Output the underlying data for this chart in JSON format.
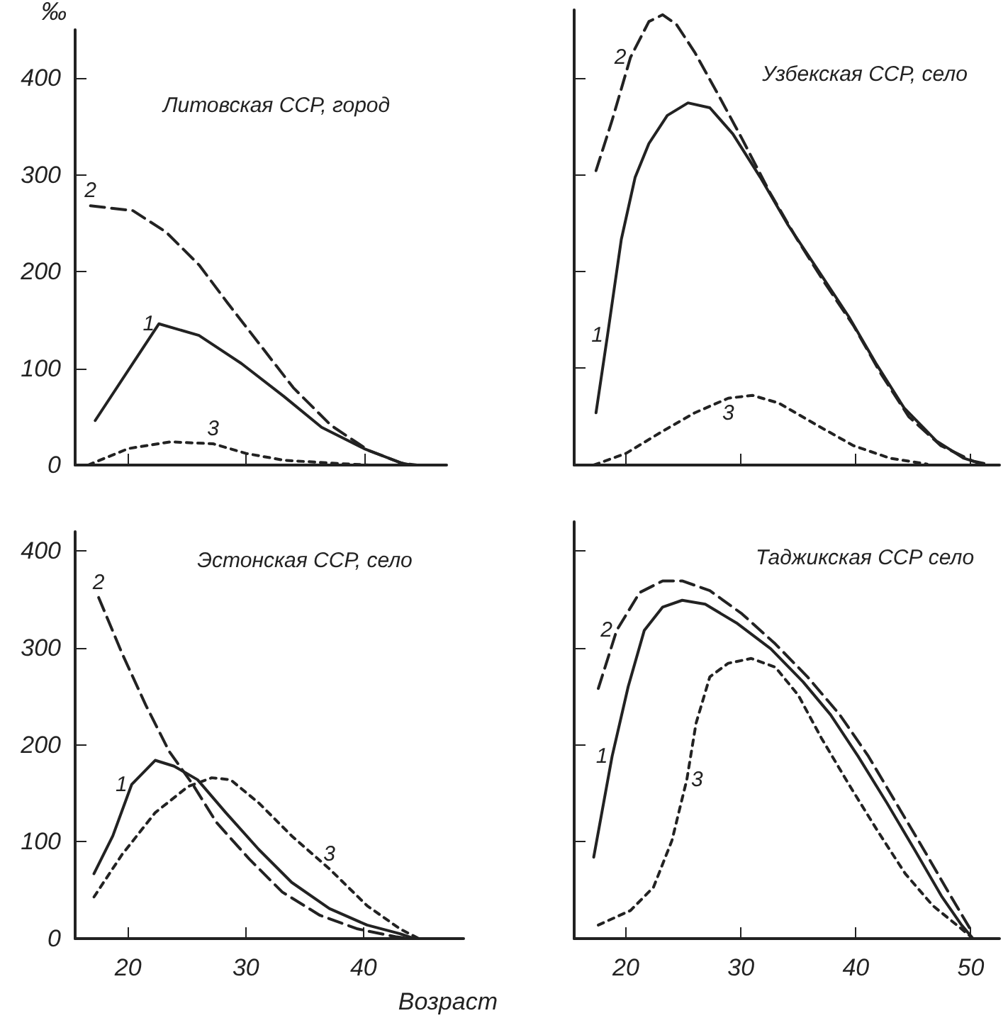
{
  "chart_data": [
    {
      "type": "line",
      "title": "Литовская ССР, город",
      "ylabel": "‰",
      "xlim": [
        15.5,
        47
      ],
      "xticks": [
        20,
        30,
        40
      ],
      "ylim": [
        0,
        450
      ],
      "yticks": [
        0,
        100,
        200,
        300,
        400
      ],
      "tick_labels": "y",
      "grid": false,
      "legend": false,
      "marker": "none",
      "series": [
        {
          "name": "1",
          "color": "#222222",
          "line_style": "solid",
          "x": [
            17.2,
            22.6,
            26,
            29.6,
            33.2,
            36.4,
            40,
            43.2,
            44
          ],
          "values": [
            46,
            146,
            134,
            105,
            71,
            39,
            17,
            2,
            0
          ]
        },
        {
          "name": "2",
          "color": "#222222",
          "line_style": "dashed",
          "x": [
            16.8,
            20.4,
            23.2,
            26,
            28.4,
            31.2,
            34,
            37.2,
            40.4,
            43.2,
            44.5
          ],
          "values": [
            268,
            263,
            241,
            207,
            168,
            124,
            80,
            41,
            15,
            2,
            0
          ]
        },
        {
          "name": "3",
          "color": "#222222",
          "line_style": "dotted",
          "x": [
            16.6,
            20,
            23.6,
            27.2,
            30,
            33.2,
            37.2,
            40.4
          ],
          "values": [
            0,
            17,
            24,
            22,
            12,
            5,
            2,
            0
          ]
        }
      ]
    },
    {
      "type": "line",
      "title": "Узбекская ССР, село",
      "xlim": [
        15.5,
        52.5
      ],
      "xticks": [
        20,
        30,
        40,
        50
      ],
      "ylim": [
        0,
        470
      ],
      "yticks": [
        0,
        100,
        200,
        300,
        400
      ],
      "tick_labels": false,
      "grid": false,
      "legend": false,
      "marker": "none",
      "series": [
        {
          "name": "1",
          "color": "#222222",
          "line_style": "solid",
          "x": [
            17.4,
            18.4,
            19.6,
            20.8,
            22,
            23.6,
            25.4,
            27.3,
            29.3,
            31.7,
            34.1,
            36.9,
            39.4,
            41.8,
            44.2,
            47,
            49.4,
            51
          ],
          "values": [
            54,
            134,
            233,
            297,
            332,
            361,
            374,
            369,
            342,
            297,
            248,
            198,
            153,
            104,
            59,
            25,
            7,
            1
          ]
        },
        {
          "name": "2",
          "color": "#222222",
          "line_style": "dashed",
          "x": [
            17.4,
            18.8,
            20.4,
            22,
            23.2,
            24.4,
            26,
            28.1,
            30.1,
            32.5,
            34.9,
            37.3,
            39.8,
            42.2,
            44.6,
            47.4,
            50.2,
            51.4
          ],
          "values": [
            304,
            356,
            421,
            458,
            465,
            455,
            426,
            381,
            337,
            282,
            233,
            188,
            144,
            94,
            50,
            20,
            4,
            1
          ]
        },
        {
          "name": "3",
          "color": "#222222",
          "line_style": "dotted",
          "x": [
            17.2,
            20,
            23.2,
            26,
            28.9,
            31,
            33.3,
            36.5,
            39.8,
            43,
            46.2
          ],
          "values": [
            0,
            12,
            35,
            54,
            69,
            72,
            64,
            42,
            20,
            7,
            1
          ]
        }
      ]
    },
    {
      "type": "line",
      "title": "Эстонская ССР, село",
      "xlabel": "Возраст",
      "xlim": [
        15.5,
        48.5
      ],
      "xticks": [
        20,
        30,
        40
      ],
      "ylim": [
        0,
        420
      ],
      "yticks": [
        0,
        100,
        200,
        300,
        400
      ],
      "grid": false,
      "legend": false,
      "marker": "none",
      "series": [
        {
          "name": "1",
          "color": "#222222",
          "line_style": "solid",
          "x": [
            17.1,
            18.7,
            20.3,
            22.3,
            23.9,
            25.9,
            28.3,
            31.1,
            33.9,
            37.1,
            40.3,
            43.1,
            44.3
          ],
          "values": [
            67,
            106,
            159,
            184,
            178,
            164,
            130,
            92,
            58,
            31,
            14,
            5,
            0
          ]
        },
        {
          "name": "2",
          "color": "#222222",
          "line_style": "dashed",
          "x": [
            17.5,
            19.5,
            21.5,
            23.5,
            25.5,
            27.5,
            30.3,
            33.1,
            36.3,
            39.5,
            42.7,
            43.9
          ],
          "values": [
            352,
            294,
            241,
            193,
            159,
            120,
            82,
            48,
            24,
            10,
            2,
            0
          ]
        },
        {
          "name": "3",
          "color": "#222222",
          "line_style": "dotted",
          "x": [
            17.1,
            19.5,
            22.3,
            25.1,
            27.1,
            28.7,
            31.1,
            33.9,
            37.1,
            40.3,
            43.1,
            44.7
          ],
          "values": [
            43,
            87,
            130,
            157,
            166,
            164,
            140,
            106,
            72,
            34,
            10,
            0
          ]
        }
      ]
    },
    {
      "type": "line",
      "title": "Таджикская ССР село",
      "xlim": [
        15.5,
        52.5
      ],
      "xticks": [
        20,
        30,
        40,
        50
      ],
      "ylim": [
        0,
        430
      ],
      "yticks": [
        0,
        100,
        200,
        300,
        400
      ],
      "tick_labels": "x",
      "grid": false,
      "legend": false,
      "marker": "none",
      "series": [
        {
          "name": "1",
          "color": "#222222",
          "line_style": "solid",
          "x": [
            17.2,
            18.8,
            20.2,
            21.6,
            23.2,
            24.9,
            26.9,
            29.7,
            32.6,
            35.4,
            37.8,
            40.2,
            42.7,
            45.1,
            47.5,
            49.2,
            50.2
          ],
          "values": [
            84,
            188,
            260,
            318,
            342,
            349,
            345,
            325,
            299,
            265,
            231,
            188,
            140,
            92,
            43,
            14,
            0
          ]
        },
        {
          "name": "2",
          "color": "#222222",
          "line_style": "dashed",
          "x": [
            17.6,
            19.2,
            21.2,
            23.2,
            24.9,
            27.3,
            30.1,
            33,
            35.8,
            38.6,
            41.1,
            43.5,
            45.9,
            48.3,
            50.2
          ],
          "values": [
            258,
            318,
            357,
            369,
            369,
            359,
            335,
            304,
            270,
            231,
            188,
            140,
            92,
            43,
            5
          ]
        },
        {
          "name": "3",
          "color": "#222222",
          "line_style": "dotted",
          "x": [
            17.6,
            20.4,
            22.4,
            24,
            25.3,
            26.1,
            27.3,
            28.9,
            30.9,
            33,
            35,
            37,
            39.4,
            41.9,
            44.3,
            46.7,
            49.2,
            50
          ],
          "values": [
            14,
            29,
            53,
            101,
            164,
            222,
            270,
            284,
            289,
            280,
            251,
            207,
            159,
            111,
            67,
            34,
            10,
            2
          ]
        }
      ]
    }
  ]
}
